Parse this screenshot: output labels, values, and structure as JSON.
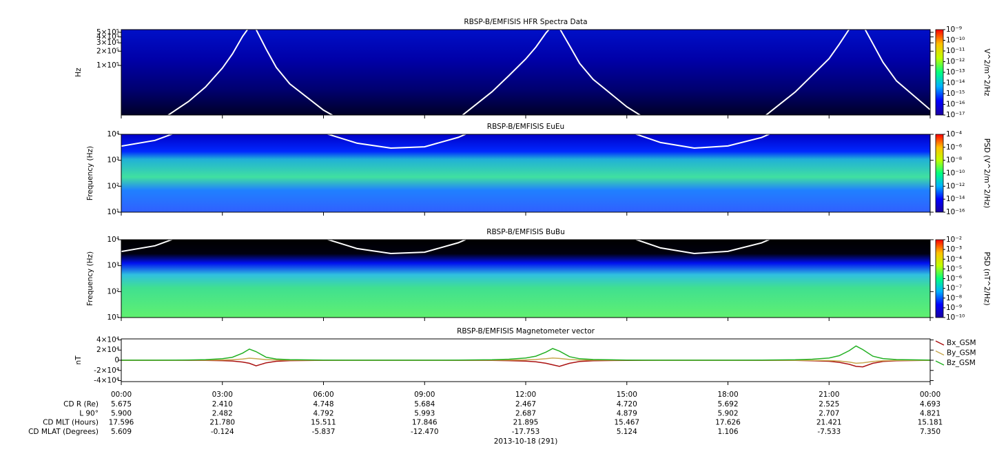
{
  "time_axis": {
    "xlim": [
      0,
      24
    ],
    "xticks": [
      {
        "value": 0,
        "label": "00:00"
      },
      {
        "value": 3,
        "label": "03:00"
      },
      {
        "value": 6,
        "label": "06:00"
      },
      {
        "value": 9,
        "label": "09:00"
      },
      {
        "value": 12,
        "label": "12:00"
      },
      {
        "value": 15,
        "label": "15:00"
      },
      {
        "value": 18,
        "label": "18:00"
      },
      {
        "value": 21,
        "label": "21:00"
      },
      {
        "value": 24,
        "label": "00:00"
      }
    ],
    "ephemeris": [
      {
        "label": "CD R (Re)",
        "values": [
          "5.675",
          "2.410",
          "4.748",
          "5.684",
          "2.467",
          "4.720",
          "5.692",
          "2.525",
          "4.693"
        ]
      },
      {
        "label": "L 90°",
        "values": [
          "5.900",
          "2.482",
          "4.792",
          "5.993",
          "2.687",
          "4.879",
          "5.902",
          "2.707",
          "4.821"
        ]
      },
      {
        "label": "CD MLT (Hours)",
        "values": [
          "17.596",
          "21.780",
          "15.511",
          "17.846",
          "21.895",
          "15.467",
          "17.626",
          "21.421",
          "15.181"
        ]
      },
      {
        "label": "CD MLAT (Degrees)",
        "values": [
          "5.609",
          "-0.124",
          "-5.837",
          "-12.470",
          "-17.753",
          "5.124",
          "1.106",
          "-7.533",
          "7.350"
        ]
      }
    ],
    "date": "2013-10-18 (291)"
  },
  "chart_data": [
    {
      "type": "spectrogram",
      "title": "RBSP-B/EMFISIS  HFR Spectra Data",
      "y_label": "Hz",
      "log_y": true,
      "ylim": [
        9000,
        570000
      ],
      "yticks": [
        {
          "value": 100000,
          "label": "1×10⁵"
        },
        {
          "value": 200000,
          "label": "2×10⁵"
        },
        {
          "value": 300000,
          "label": "3×10⁵"
        },
        {
          "value": 400000,
          "label": "4×10⁵"
        },
        {
          "value": 500000,
          "label": "5×10⁵"
        }
      ],
      "colorbar": {
        "label": "V^2/m^2/Hz",
        "lim": [
          1e-17,
          1e-09
        ],
        "ticks": [
          {
            "value": 1e-09,
            "label": "10⁻⁹"
          },
          {
            "value": 1e-10,
            "label": "10⁻¹⁰"
          },
          {
            "value": 1e-11,
            "label": "10⁻¹¹"
          },
          {
            "value": 1e-12,
            "label": "10⁻¹²"
          },
          {
            "value": 1e-13,
            "label": "10⁻¹³"
          },
          {
            "value": 1e-14,
            "label": "10⁻¹⁴"
          },
          {
            "value": 1e-15,
            "label": "10⁻¹⁵"
          },
          {
            "value": 1e-16,
            "label": "10⁻¹⁶"
          },
          {
            "value": 1e-17,
            "label": "10⁻¹⁷"
          }
        ],
        "colors": [
          "#1a00a0",
          "#0000ff",
          "#00b0ff",
          "#00ff80",
          "#c0ff00",
          "#ffc000",
          "#ff0000"
        ]
      }
    },
    {
      "type": "spectrogram",
      "title": "RBSP-B/EMFISIS  EuEu",
      "y_label": "Frequency (Hz)",
      "log_y": true,
      "ylim": [
        10,
        10000
      ],
      "yticks": [
        {
          "value": 10,
          "label": "10¹"
        },
        {
          "value": 100,
          "label": "10²"
        },
        {
          "value": 1000,
          "label": "10³"
        },
        {
          "value": 10000,
          "label": "10⁴"
        }
      ],
      "colorbar": {
        "label": "PSD (V^2/m^2/Hz)",
        "lim": [
          1e-16,
          0.0001
        ],
        "ticks": [
          {
            "value": 0.0001,
            "label": "10⁻⁴"
          },
          {
            "value": 1e-06,
            "label": "10⁻⁶"
          },
          {
            "value": 1e-08,
            "label": "10⁻⁸"
          },
          {
            "value": 1e-10,
            "label": "10⁻¹⁰"
          },
          {
            "value": 1e-12,
            "label": "10⁻¹²"
          },
          {
            "value": 1e-14,
            "label": "10⁻¹⁴"
          },
          {
            "value": 1e-16,
            "label": "10⁻¹⁶"
          }
        ],
        "colors": [
          "#1a00a0",
          "#0000ff",
          "#00b0ff",
          "#00ff80",
          "#c0ff00",
          "#ffc000",
          "#ff0000"
        ]
      }
    },
    {
      "type": "spectrogram",
      "title": "RBSP-B/EMFISIS  BuBu",
      "y_label": "Frequency (Hz)",
      "log_y": true,
      "ylim": [
        10,
        10000
      ],
      "yticks": [
        {
          "value": 10,
          "label": "10¹"
        },
        {
          "value": 100,
          "label": "10²"
        },
        {
          "value": 1000,
          "label": "10³"
        },
        {
          "value": 10000,
          "label": "10⁴"
        }
      ],
      "colorbar": {
        "label": "PSD (nT^2/Hz)",
        "lim": [
          1e-10,
          0.01
        ],
        "ticks": [
          {
            "value": 0.01,
            "label": "10⁻²"
          },
          {
            "value": 0.001,
            "label": "10⁻³"
          },
          {
            "value": 0.0001,
            "label": "10⁻⁴"
          },
          {
            "value": 1e-05,
            "label": "10⁻⁵"
          },
          {
            "value": 1e-06,
            "label": "10⁻⁶"
          },
          {
            "value": 1e-07,
            "label": "10⁻⁷"
          },
          {
            "value": 1e-08,
            "label": "10⁻⁸"
          },
          {
            "value": 1e-09,
            "label": "10⁻⁹"
          },
          {
            "value": 1e-10,
            "label": "10⁻¹⁰"
          }
        ],
        "colors": [
          "#1a00a0",
          "#0000ff",
          "#00b0ff",
          "#00ff80",
          "#c0ff00",
          "#ffc000",
          "#ff0000"
        ]
      }
    },
    {
      "type": "line",
      "title": "RBSP-B/EMFISIS  Magnetometer vector",
      "y_label": "nT",
      "ylim": [
        -42000,
        42000
      ],
      "yticks": [
        {
          "value": 40000,
          "label": "4×10⁴"
        },
        {
          "value": 20000,
          "label": "2×10⁴"
        },
        0,
        {
          "value": -20000,
          "label": "-2×10⁴"
        },
        {
          "value": -40000,
          "label": "-4×10⁴"
        }
      ],
      "x": [
        0,
        1,
        2,
        2.5,
        3,
        3.3,
        3.6,
        3.8,
        4.0,
        4.3,
        4.6,
        5,
        6,
        7,
        8,
        9,
        10,
        11,
        11.5,
        12,
        12.3,
        12.6,
        12.8,
        13.0,
        13.3,
        13.6,
        14,
        15,
        16,
        17,
        18,
        19,
        20,
        20.5,
        21,
        21.3,
        21.6,
        21.8,
        22.0,
        22.3,
        22.6,
        23,
        24
      ],
      "series": [
        {
          "name": "Bx_GSM",
          "color": "#aa1010",
          "values": [
            -30,
            -50,
            -150,
            -300,
            -800,
            -1500,
            -3500,
            -6000,
            -11000,
            -5000,
            -2000,
            -800,
            -200,
            -60,
            -30,
            -40,
            -100,
            -400,
            -800,
            -1800,
            -3000,
            -6000,
            -9000,
            -12000,
            -6000,
            -2500,
            -1000,
            -250,
            -60,
            -30,
            -40,
            -100,
            -400,
            -900,
            -2000,
            -4000,
            -8000,
            -12000,
            -13000,
            -6000,
            -2500,
            -1000,
            -200
          ]
        },
        {
          "name": "By_GSM",
          "color": "#c8a850",
          "values": [
            20,
            30,
            80,
            200,
            500,
            1000,
            2500,
            4000,
            3000,
            1200,
            500,
            200,
            60,
            20,
            10,
            15,
            40,
            150,
            300,
            700,
            1500,
            3000,
            4500,
            3500,
            1500,
            600,
            300,
            80,
            20,
            10,
            10,
            -20,
            -100,
            -300,
            -700,
            -1500,
            -3500,
            -6000,
            -5000,
            -2500,
            -1000,
            -400,
            -100
          ]
        },
        {
          "name": "Bz_GSM",
          "color": "#22b022",
          "values": [
            120,
            200,
            600,
            1200,
            3000,
            6000,
            14000,
            22000,
            17000,
            6000,
            2500,
            1200,
            350,
            150,
            100,
            110,
            250,
            900,
            2000,
            4500,
            8000,
            16000,
            23000,
            18000,
            7000,
            3000,
            1500,
            400,
            160,
            100,
            120,
            250,
            900,
            2000,
            4500,
            9000,
            19000,
            28000,
            21000,
            8000,
            3200,
            1300,
            350
          ]
        }
      ]
    }
  ]
}
